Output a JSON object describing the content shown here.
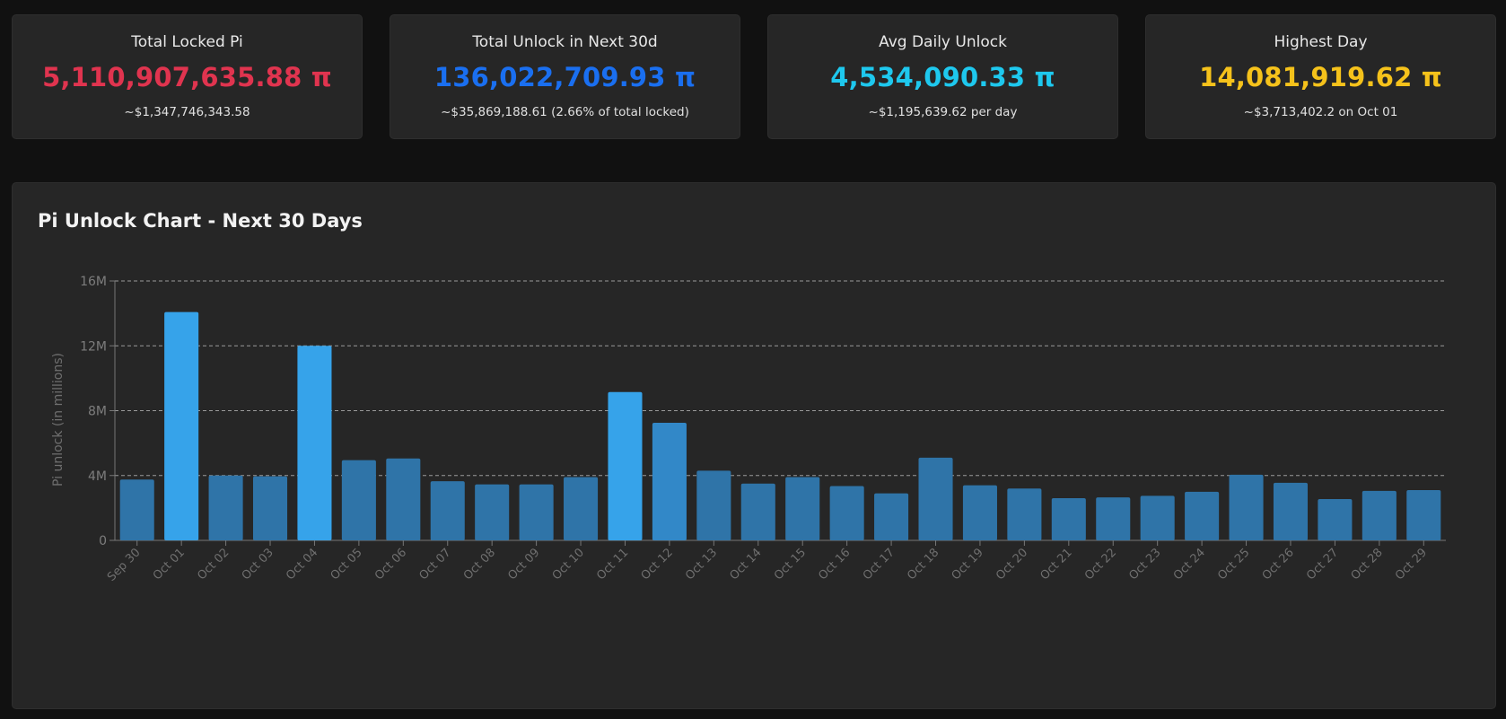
{
  "cards": [
    {
      "title": "Total Locked Pi",
      "value": "5,110,907,635.88 π",
      "sub": "~$1,347,746,343.58",
      "color": "#e0344f"
    },
    {
      "title": "Total Unlock in Next 30d",
      "value": "136,022,709.93 π",
      "sub": "~$35,869,188.61 (2.66% of total locked)",
      "color": "#1a6ff0"
    },
    {
      "title": "Avg Daily Unlock",
      "value": "4,534,090.33 π",
      "sub": "~$1,195,639.62 per day",
      "color": "#1ec8ee"
    },
    {
      "title": "Highest Day",
      "value": "14,081,919.62 π",
      "sub": "~$3,713,402.2 on Oct 01",
      "color": "#f5c21b"
    }
  ],
  "panel": {
    "title": "Pi Unlock Chart - Next 30 Days"
  },
  "chart_data": {
    "type": "bar",
    "title": "Pi Unlock Chart - Next 30 Days",
    "xlabel": "",
    "ylabel": "Pi unlock (in millions)",
    "ylim": [
      0,
      16000000
    ],
    "yticks": [
      0,
      4000000,
      8000000,
      12000000,
      16000000
    ],
    "ytick_labels": [
      "0",
      "4M",
      "8M",
      "12M",
      "16M"
    ],
    "grid": true,
    "bar_color": "#2f74a8",
    "highlight_color": "#36a3ea",
    "categories": [
      "Sep 30",
      "Oct 01",
      "Oct 02",
      "Oct 03",
      "Oct 04",
      "Oct 05",
      "Oct 06",
      "Oct 07",
      "Oct 08",
      "Oct 09",
      "Oct 10",
      "Oct 11",
      "Oct 12",
      "Oct 13",
      "Oct 14",
      "Oct 15",
      "Oct 16",
      "Oct 17",
      "Oct 18",
      "Oct 19",
      "Oct 20",
      "Oct 21",
      "Oct 22",
      "Oct 23",
      "Oct 24",
      "Oct 25",
      "Oct 26",
      "Oct 27",
      "Oct 28",
      "Oct 29"
    ],
    "values": [
      3750000,
      14080000,
      4000000,
      3950000,
      12000000,
      4950000,
      5050000,
      3650000,
      3450000,
      3450000,
      3900000,
      9150000,
      7250000,
      4300000,
      3500000,
      3900000,
      3350000,
      2900000,
      5100000,
      3400000,
      3200000,
      2600000,
      2650000,
      2750000,
      3000000,
      4050000,
      3550000,
      2550000,
      3050000,
      3100000
    ]
  }
}
